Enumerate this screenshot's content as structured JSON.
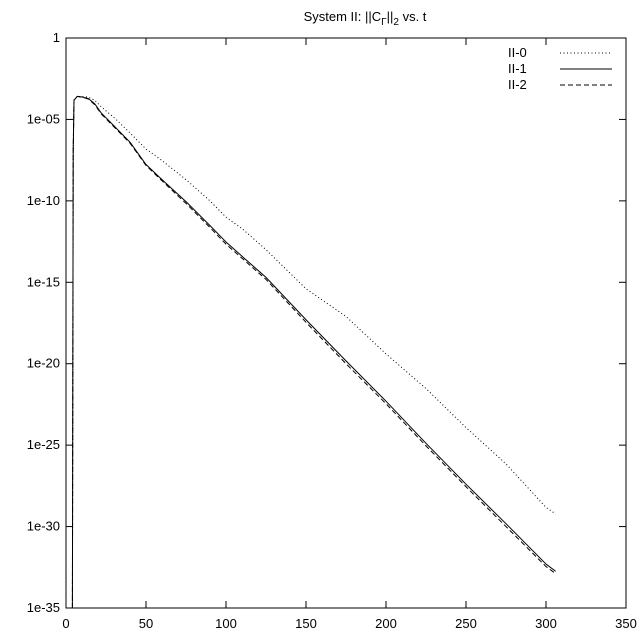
{
  "chart_data": {
    "type": "line",
    "title": {
      "prefix": "System II: ||C",
      "subscript1": "Γ",
      "middle": "||",
      "subscript2": "2",
      "suffix": " vs. t"
    },
    "xlabel": "",
    "ylabel": "",
    "xlim": [
      0,
      350
    ],
    "ylim": [
      1e-35,
      1
    ],
    "yscale": "log",
    "grid": false,
    "legend_position": "top-right",
    "x_ticks": [
      0,
      50,
      100,
      150,
      200,
      250,
      300,
      350
    ],
    "x_tick_labels": [
      "0",
      "50",
      "100",
      "150",
      "200",
      "250",
      "300",
      "350"
    ],
    "y_ticks": [
      1,
      1e-05,
      1e-10,
      1e-15,
      1e-20,
      1e-25,
      1e-30,
      1e-35
    ],
    "y_tick_labels": [
      "1",
      "1e-05",
      "1e-10",
      "1e-15",
      "1e-20",
      "1e-25",
      "1e-30",
      "1e-35"
    ],
    "series": [
      {
        "name": "II-0",
        "style": "dotted",
        "color": "#000000",
        "x": [
          4,
          4.5,
          5,
          7,
          10,
          14,
          18,
          22,
          30,
          40,
          50,
          60,
          75,
          90,
          100,
          110,
          125,
          150,
          175,
          200,
          225,
          250,
          275,
          300,
          306
        ],
        "y": [
          1e-35,
          1e-07,
          0.00016,
          0.00025,
          0.00026,
          0.00023,
          0.00015,
          6e-05,
          1.3e-05,
          1.5e-06,
          1.5e-07,
          3e-08,
          2e-09,
          1e-10,
          1e-11,
          2e-12,
          1e-13,
          4e-16,
          8e-18,
          4e-20,
          3e-22,
          1.2e-24,
          7e-27,
          1.5e-29,
          6e-30
        ]
      },
      {
        "name": "II-1",
        "style": "solid",
        "color": "#000000",
        "x": [
          4,
          4.5,
          5,
          7,
          10,
          14,
          18,
          22,
          30,
          40,
          50,
          60,
          75,
          90,
          100,
          110,
          125,
          150,
          175,
          200,
          225,
          250,
          275,
          300,
          306
        ],
        "y": [
          1e-35,
          1e-07,
          0.00015,
          0.00026,
          0.00024,
          0.00019,
          9e-05,
          2.5e-05,
          4e-06,
          4e-07,
          1.7e-08,
          2e-09,
          9e-11,
          3e-12,
          3e-13,
          4e-14,
          2e-15,
          5e-18,
          1.5e-20,
          5e-23,
          1.3e-25,
          4e-28,
          1.5e-30,
          5e-33,
          1.8e-33
        ]
      },
      {
        "name": "II-2",
        "style": "dashed",
        "color": "#000000",
        "x": [
          4,
          4.5,
          5,
          7,
          10,
          14,
          18,
          22,
          30,
          40,
          50,
          60,
          75,
          90,
          100,
          110,
          125,
          150,
          175,
          200,
          225,
          250,
          275,
          300,
          306
        ],
        "y": [
          1e-35,
          1e-07,
          0.00015,
          0.00026,
          0.00023,
          0.00018,
          8e-05,
          2.2e-05,
          3.5e-06,
          3.5e-07,
          1.5e-08,
          1.7e-09,
          7e-11,
          2.3e-12,
          2.2e-13,
          3e-14,
          1.5e-15,
          3.5e-18,
          1e-20,
          3.5e-23,
          9e-26,
          2.8e-28,
          1e-30,
          3.5e-33,
          1.3e-33
        ]
      }
    ]
  }
}
